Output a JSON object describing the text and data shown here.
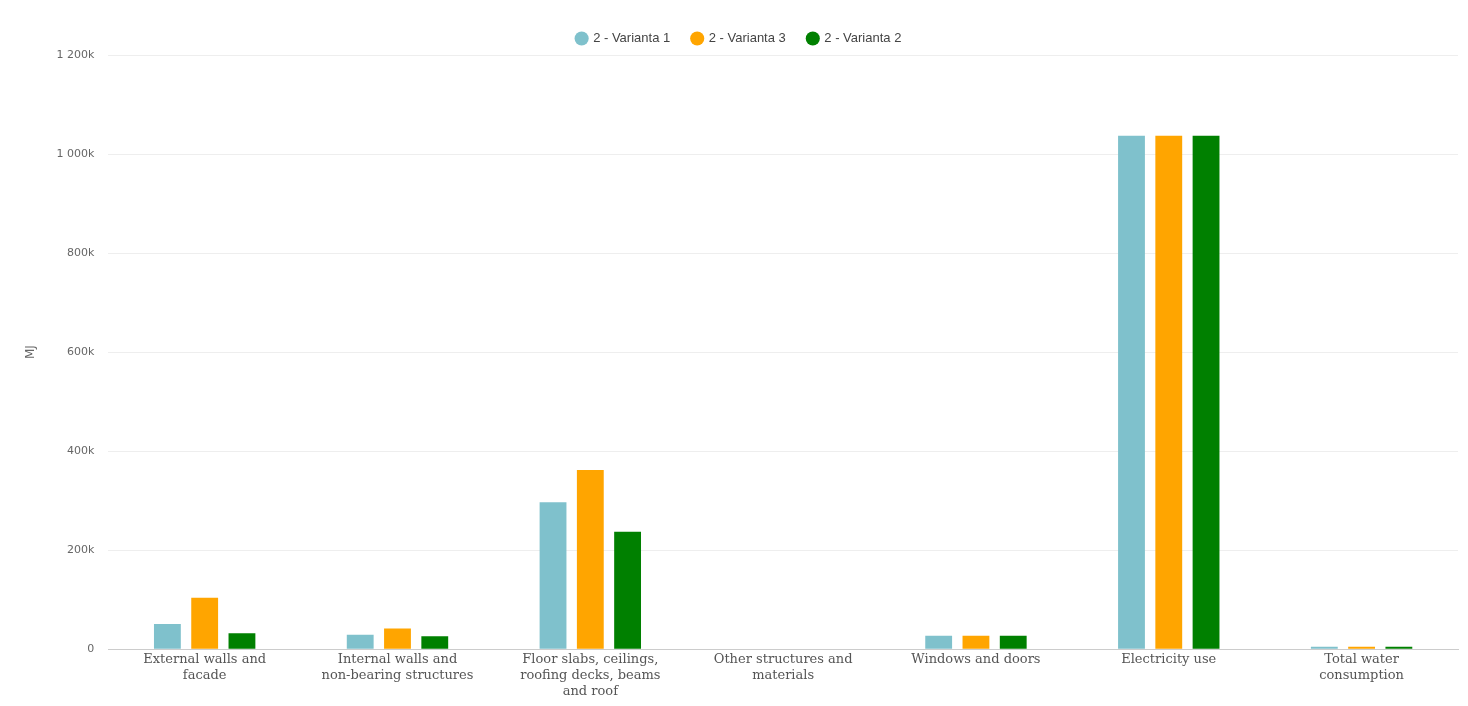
{
  "chart_data": {
    "type": "bar",
    "ylabel": "MJ",
    "categories": [
      "External walls and facade",
      "Internal walls and non-bearing structures",
      "Floor slabs, ceilings, roofing decks, beams and roof",
      "Other structures and materials",
      "Windows and doors",
      "Electricity use",
      "Total water consumption"
    ],
    "series": [
      {
        "name": "2 - Varianta 1",
        "color": "#7fc1cc",
        "values": [
          51000,
          29000,
          297000,
          0,
          27000,
          1037000,
          5000
        ]
      },
      {
        "name": "2 - Varianta 3",
        "color": "#ffa500",
        "values": [
          104000,
          42000,
          362000,
          0,
          27000,
          1037000,
          5000
        ]
      },
      {
        "name": "2 - Varianta 2",
        "color": "#008000",
        "values": [
          32000,
          26000,
          237000,
          0,
          27000,
          1037000,
          5000
        ]
      }
    ],
    "ylim": [
      0,
      1200000
    ],
    "yticks": [
      {
        "value": 0,
        "label": "0"
      },
      {
        "value": 200000,
        "label": "200k"
      },
      {
        "value": 400000,
        "label": "400k"
      },
      {
        "value": 600000,
        "label": "600k"
      },
      {
        "value": 800000,
        "label": "800k"
      },
      {
        "value": 1000000,
        "label": "1 000k"
      },
      {
        "value": 1200000,
        "label": "1 200k"
      }
    ],
    "grid": "y",
    "legend": "top"
  }
}
